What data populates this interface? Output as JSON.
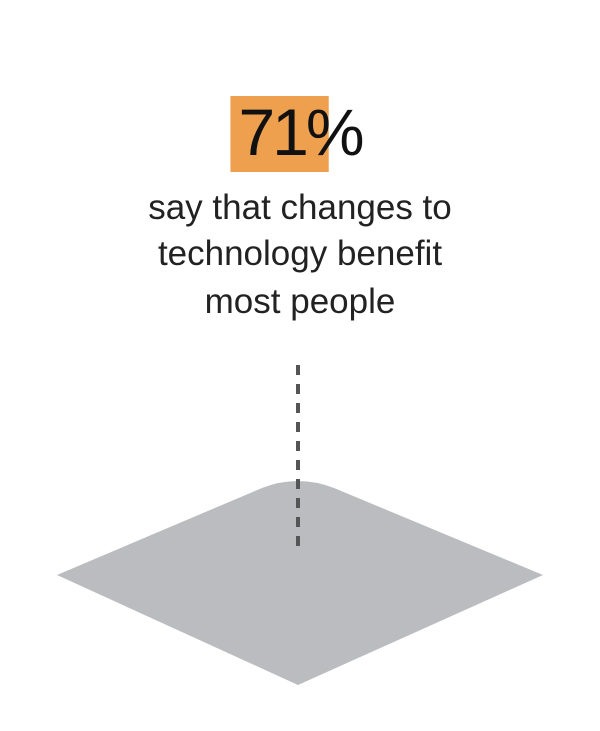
{
  "stat": {
    "value": 71,
    "label": "71%"
  },
  "caption": [
    "say that changes to",
    "technology benefit",
    "most people"
  ]
}
